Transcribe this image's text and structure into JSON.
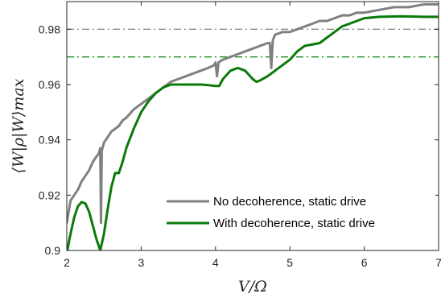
{
  "chart_data": {
    "type": "line",
    "xlabel": "V/Ω",
    "ylabel": "⟨W|ρ|W⟩max",
    "xlim": [
      2,
      7
    ],
    "ylim": [
      0.9,
      0.99
    ],
    "xticks": [
      2,
      3,
      4,
      5,
      6,
      7
    ],
    "yticks": [
      0.9,
      0.92,
      0.94,
      0.96,
      0.98
    ],
    "xtick_labels": [
      "2",
      "3",
      "4",
      "5",
      "6",
      "7"
    ],
    "ytick_labels": [
      "0.9",
      "0.92",
      "0.94",
      "0.96",
      "0.98"
    ],
    "grid": false,
    "legend_position": "bottom-right",
    "reference_lines": [
      {
        "y": 0.98,
        "style": "dash-dot",
        "color": "#8c8c8c"
      },
      {
        "y": 0.97,
        "style": "dash-dot",
        "color": "#1e8c1e"
      }
    ],
    "series": [
      {
        "name": "No decoherence, static drive",
        "color": "#808080",
        "points": [
          [
            2.0,
            0.91
          ],
          [
            2.05,
            0.918
          ],
          [
            2.1,
            0.92
          ],
          [
            2.15,
            0.922
          ],
          [
            2.2,
            0.925
          ],
          [
            2.25,
            0.927
          ],
          [
            2.3,
            0.929
          ],
          [
            2.35,
            0.932
          ],
          [
            2.4,
            0.934
          ],
          [
            2.43,
            0.935
          ],
          [
            2.45,
            0.937
          ],
          [
            2.46,
            0.91
          ],
          [
            2.47,
            0.936
          ],
          [
            2.5,
            0.939
          ],
          [
            2.55,
            0.941
          ],
          [
            2.6,
            0.943
          ],
          [
            2.65,
            0.944
          ],
          [
            2.7,
            0.945
          ],
          [
            2.75,
            0.947
          ],
          [
            2.8,
            0.948
          ],
          [
            2.9,
            0.951
          ],
          [
            3.0,
            0.953
          ],
          [
            3.1,
            0.955
          ],
          [
            3.2,
            0.957
          ],
          [
            3.3,
            0.959
          ],
          [
            3.4,
            0.961
          ],
          [
            3.5,
            0.962
          ],
          [
            3.6,
            0.963
          ],
          [
            3.7,
            0.964
          ],
          [
            3.8,
            0.965
          ],
          [
            3.9,
            0.966
          ],
          [
            3.98,
            0.967
          ],
          [
            4.0,
            0.968
          ],
          [
            4.02,
            0.963
          ],
          [
            4.04,
            0.968
          ],
          [
            4.1,
            0.969
          ],
          [
            4.2,
            0.97
          ],
          [
            4.3,
            0.971
          ],
          [
            4.4,
            0.972
          ],
          [
            4.5,
            0.973
          ],
          [
            4.6,
            0.974
          ],
          [
            4.7,
            0.975
          ],
          [
            4.73,
            0.975
          ],
          [
            4.75,
            0.966
          ],
          [
            4.77,
            0.976
          ],
          [
            4.8,
            0.978
          ],
          [
            4.9,
            0.979
          ],
          [
            5.0,
            0.979
          ],
          [
            5.1,
            0.98
          ],
          [
            5.2,
            0.981
          ],
          [
            5.3,
            0.982
          ],
          [
            5.4,
            0.983
          ],
          [
            5.5,
            0.983
          ],
          [
            5.6,
            0.984
          ],
          [
            5.7,
            0.985
          ],
          [
            5.8,
            0.985
          ],
          [
            5.9,
            0.986
          ],
          [
            6.0,
            0.986
          ],
          [
            6.2,
            0.987
          ],
          [
            6.4,
            0.988
          ],
          [
            6.6,
            0.988
          ],
          [
            6.8,
            0.989
          ],
          [
            7.0,
            0.989
          ]
        ]
      },
      {
        "name": "With decoherence, static drive",
        "color": "#0a7a0a",
        "points": [
          [
            2.0,
            0.899
          ],
          [
            2.05,
            0.906
          ],
          [
            2.1,
            0.912
          ],
          [
            2.15,
            0.916
          ],
          [
            2.2,
            0.9175
          ],
          [
            2.25,
            0.917
          ],
          [
            2.3,
            0.914
          ],
          [
            2.35,
            0.909
          ],
          [
            2.4,
            0.904
          ],
          [
            2.45,
            0.9
          ],
          [
            2.5,
            0.906
          ],
          [
            2.55,
            0.915
          ],
          [
            2.6,
            0.923
          ],
          [
            2.65,
            0.928
          ],
          [
            2.7,
            0.928
          ],
          [
            2.75,
            0.932
          ],
          [
            2.8,
            0.937
          ],
          [
            2.9,
            0.944
          ],
          [
            3.0,
            0.95
          ],
          [
            3.1,
            0.954
          ],
          [
            3.2,
            0.957
          ],
          [
            3.3,
            0.959
          ],
          [
            3.4,
            0.96
          ],
          [
            3.5,
            0.96
          ],
          [
            3.6,
            0.96
          ],
          [
            3.7,
            0.96
          ],
          [
            3.8,
            0.96
          ],
          [
            3.9,
            0.9598
          ],
          [
            4.0,
            0.9595
          ],
          [
            4.05,
            0.9595
          ],
          [
            4.1,
            0.962
          ],
          [
            4.2,
            0.965
          ],
          [
            4.3,
            0.966
          ],
          [
            4.4,
            0.965
          ],
          [
            4.5,
            0.962
          ],
          [
            4.55,
            0.961
          ],
          [
            4.6,
            0.9615
          ],
          [
            4.7,
            0.963
          ],
          [
            4.8,
            0.965
          ],
          [
            4.9,
            0.967
          ],
          [
            5.0,
            0.969
          ],
          [
            5.1,
            0.972
          ],
          [
            5.2,
            0.974
          ],
          [
            5.3,
            0.9745
          ],
          [
            5.4,
            0.975
          ],
          [
            5.5,
            0.977
          ],
          [
            5.6,
            0.979
          ],
          [
            5.7,
            0.981
          ],
          [
            5.8,
            0.982
          ],
          [
            5.9,
            0.983
          ],
          [
            6.0,
            0.984
          ],
          [
            6.2,
            0.9845
          ],
          [
            6.5,
            0.9847
          ],
          [
            6.8,
            0.9845
          ],
          [
            7.0,
            0.9845
          ]
        ]
      }
    ]
  }
}
